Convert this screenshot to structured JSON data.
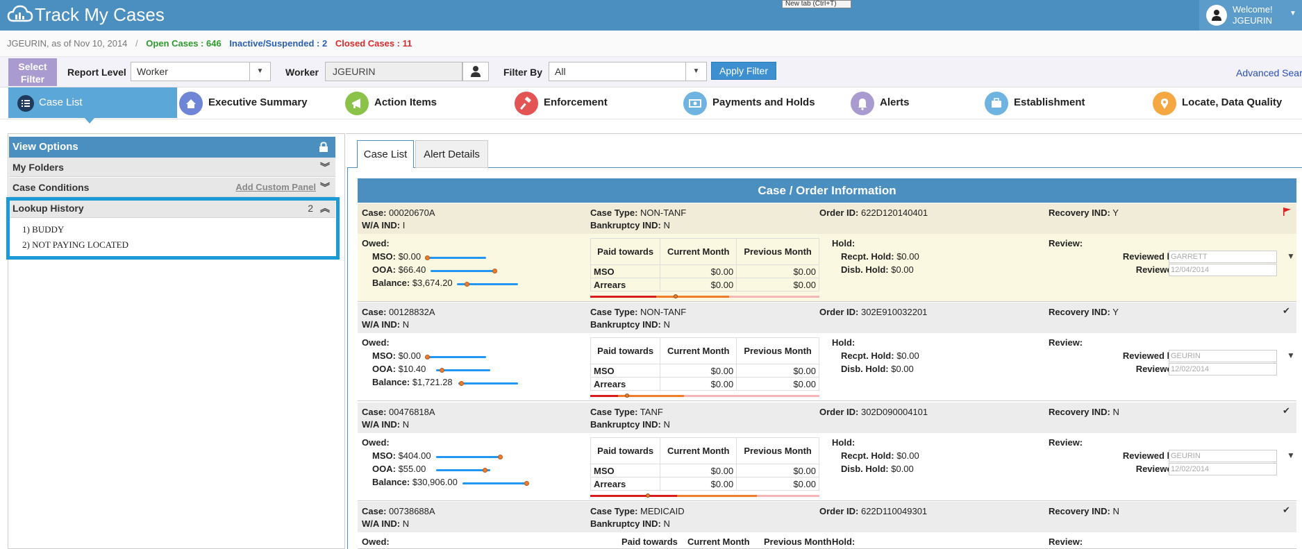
{
  "header": {
    "title": "Track My Cases",
    "tooltip": "New tab (Ctrl+T)",
    "welcome": "Welcome!",
    "username": "JGEURIN"
  },
  "status": {
    "user_as_of": "JGEURIN, as of Nov 10, 2014",
    "separator": "/",
    "open_cases": "Open Cases : 646",
    "inactive": "Inactive/Suspended : 2",
    "closed": "Closed Cases : 11"
  },
  "filter": {
    "select_filter_label": "Select Filter",
    "report_level_label": "Report Level",
    "report_level_value": "Worker",
    "worker_label": "Worker",
    "worker_value": "JGEURIN",
    "filter_by_label": "Filter By",
    "filter_by_value": "All",
    "apply_label": "Apply Filter",
    "advanced_search": "Advanced Search"
  },
  "nav": [
    {
      "label": "Case List",
      "icon": "list-icon",
      "color": "#5ba7d8"
    },
    {
      "label": "Executive Summary",
      "icon": "home-icon",
      "color": "#6f86d6"
    },
    {
      "label": "Action Items",
      "icon": "megaphone-icon",
      "color": "#8bc34a"
    },
    {
      "label": "Enforcement",
      "icon": "gavel-icon",
      "color": "#e35454"
    },
    {
      "label": "Payments and Holds",
      "icon": "money-icon",
      "color": "#6fb3e0"
    },
    {
      "label": "Alerts",
      "icon": "bell-icon",
      "color": "#a99bd0"
    },
    {
      "label": "Establishment",
      "icon": "briefcase-icon",
      "color": "#6fb3e0"
    },
    {
      "label": "Locate, Data Quality",
      "icon": "location-pin-icon",
      "color": "#f5a742"
    }
  ],
  "left_panel": {
    "view_options": "View Options",
    "my_folders": "My Folders",
    "case_conditions": "Case Conditions",
    "add_custom_panel": "Add Custom Panel",
    "lookup_history": "Lookup History",
    "lookup_count": "2",
    "lookup_items": [
      "1) BUDDY",
      "2) NOT PAYING LOCATED"
    ]
  },
  "content": {
    "tabs": [
      "Case List",
      "Alert Details"
    ],
    "section_title": "Case / Order Information",
    "labels": {
      "case": "Case:",
      "wa_ind": "W/A IND:",
      "case_type": "Case Type:",
      "bankruptcy": "Bankruptcy IND:",
      "order_id": "Order ID:",
      "recovery": "Recovery IND:",
      "owed": "Owed:",
      "mso": "MSO:",
      "ooa": "OOA:",
      "balance": "Balance:",
      "paid_towards": "Paid towards",
      "current_month": "Current Month",
      "previous_month": "Previous Month",
      "mso_row": "MSO",
      "arrears_row": "Arrears",
      "hold": "Hold:",
      "recpt_hold": "Recpt. Hold:",
      "disb_hold": "Disb. Hold:",
      "review": "Review:",
      "reviewed_by": "Reviewed by:",
      "reviewed": "Reviewed:"
    },
    "cases": [
      {
        "case": "00020670A",
        "wa_ind": "I",
        "case_type": "NON-TANF",
        "bankruptcy": "N",
        "order_id": "622D120140401",
        "recovery": "Y",
        "flag": "flag",
        "mso": "$0.00",
        "ooa": "$66.40",
        "balance": "$3,674.20",
        "mso_cur": "$0.00",
        "mso_prev": "$0.00",
        "arr_cur": "$0.00",
        "arr_prev": "$0.00",
        "recpt_hold": "$0.00",
        "disb_hold": "$0.00",
        "reviewed_by": "GARRETT",
        "reviewed": "12/04/2014"
      },
      {
        "case": "00128832A",
        "wa_ind": "N",
        "case_type": "NON-TANF",
        "bankruptcy": "N",
        "order_id": "302E910032201",
        "recovery": "Y",
        "flag": "check",
        "mso": "$0.00",
        "ooa": "$10.40",
        "balance": "$1,721.28",
        "mso_cur": "$0.00",
        "mso_prev": "$0.00",
        "arr_cur": "$0.00",
        "arr_prev": "$0.00",
        "recpt_hold": "$0.00",
        "disb_hold": "$0.00",
        "reviewed_by": "GEURIN",
        "reviewed": "12/02/2014"
      },
      {
        "case": "00476818A",
        "wa_ind": "N",
        "case_type": "TANF",
        "bankruptcy": "N",
        "order_id": "302D090004101",
        "recovery": "N",
        "flag": "check",
        "mso": "$404.00",
        "ooa": "$55.00",
        "balance": "$30,906.00",
        "mso_cur": "$0.00",
        "mso_prev": "$0.00",
        "arr_cur": "$0.00",
        "arr_prev": "$0.00",
        "recpt_hold": "$0.00",
        "disb_hold": "$0.00",
        "reviewed_by": "GEURIN",
        "reviewed": "12/02/2014"
      },
      {
        "case": "00738688A",
        "wa_ind": "N",
        "case_type": "MEDICAID",
        "bankruptcy": "N",
        "order_id": "622D110049301",
        "recovery": "N",
        "flag": "check"
      }
    ]
  },
  "colors": {
    "header": "#4a8fc0",
    "open": "#2e9a2e",
    "inactive": "#2a5fb0",
    "closed": "#d52b2b",
    "highlight_row": "#fbf8e2",
    "lookup_border": "#1a9ad6"
  }
}
